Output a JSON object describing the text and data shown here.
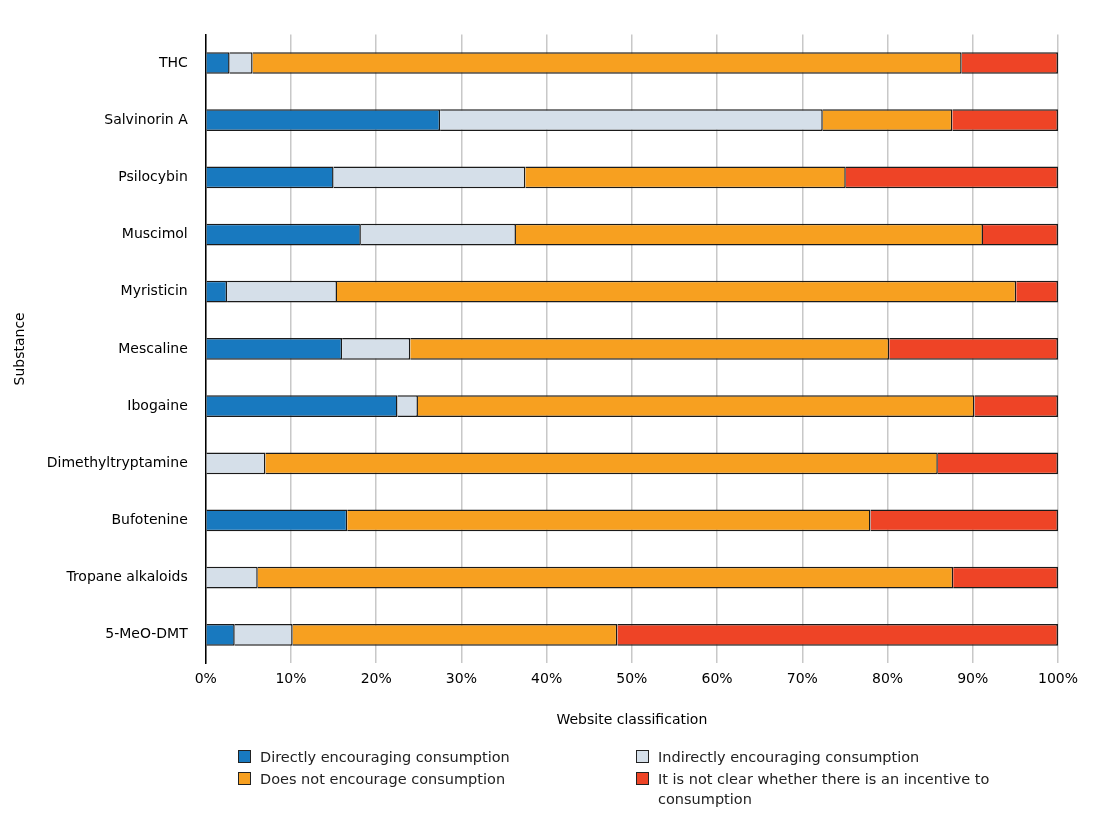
{
  "chart_data": {
    "type": "bar",
    "orientation": "horizontal",
    "stacked": true,
    "xlabel": "Website classification",
    "ylabel": "Substance",
    "categories": [
      "THC",
      "Salvinorin A",
      "Psilocybin",
      "Muscimol",
      "Myristicin",
      "Mescaline",
      "Ibogaine",
      "Dimethyltryptamine",
      "Bufotenine",
      "Tropane alkaloids",
      "5-MeO-DMT"
    ],
    "series": [
      {
        "name": "Directly encouraging consumption",
        "color": "#1879bf",
        "values": [
          2.8,
          27.5,
          15.0,
          18.2,
          2.5,
          16.0,
          22.5,
          0,
          16.6,
          0,
          3.4
        ]
      },
      {
        "name": "Indirectly encouraging consumption",
        "color": "#d5dfe9",
        "values": [
          2.7,
          44.9,
          22.5,
          18.2,
          12.9,
          8.0,
          2.4,
          7.0,
          0,
          6.1,
          6.8
        ]
      },
      {
        "name": "Does not encourage consumption",
        "color": "#f7a020",
        "values": [
          83.2,
          15.2,
          37.6,
          54.8,
          79.7,
          56.2,
          65.3,
          78.9,
          61.4,
          81.6,
          38.1
        ]
      },
      {
        "name": "It is not clear whether there is an incentive to consumption",
        "color": "#ee4426",
        "values": [
          11.3,
          12.4,
          24.9,
          8.8,
          4.9,
          19.8,
          9.8,
          14.1,
          22.0,
          12.3,
          51.7
        ]
      }
    ],
    "xlim": [
      0,
      100
    ],
    "xticks": [
      {
        "value": 0,
        "label": "0%"
      },
      {
        "value": 10,
        "label": "10%"
      },
      {
        "value": 20,
        "label": "20%"
      },
      {
        "value": 30,
        "label": "30%"
      },
      {
        "value": 40,
        "label": "40%"
      },
      {
        "value": 50,
        "label": "50%"
      },
      {
        "value": 60,
        "label": "60%"
      },
      {
        "value": 70,
        "label": "70%"
      },
      {
        "value": 80,
        "label": "80%"
      },
      {
        "value": 90,
        "label": "90%"
      },
      {
        "value": 100,
        "label": "100%"
      }
    ],
    "grid": "x",
    "legend": "bottom"
  }
}
